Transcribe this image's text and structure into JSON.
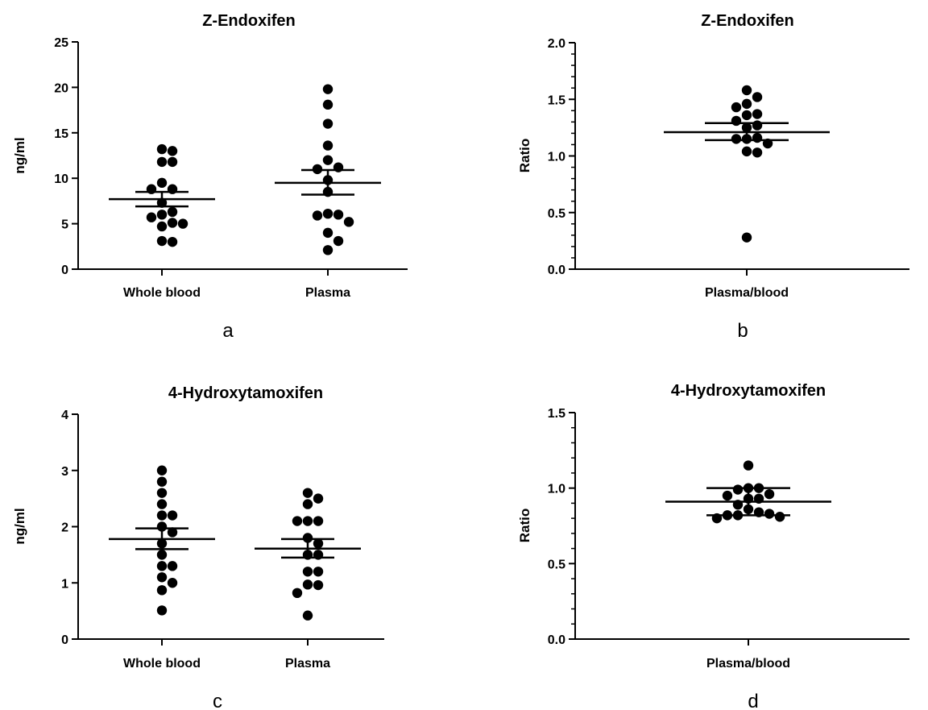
{
  "chart_data": [
    {
      "type": "scatter",
      "panel_label": "a",
      "title": "Z-Endoxifen",
      "ylabel": "ng/ml",
      "xlabel": "",
      "ylim": [
        0,
        25
      ],
      "yticks": [
        0,
        5,
        10,
        15,
        20,
        25
      ],
      "grid": false,
      "categories": [
        "Whole blood",
        "Plasma"
      ],
      "series": [
        {
          "category": "Whole blood",
          "values": [
            13.2,
            13.0,
            11.8,
            11.8,
            9.5,
            8.8,
            8.8,
            7.3,
            6.3,
            6.0,
            5.7,
            5.1,
            5.0,
            4.7,
            3.1,
            3.0
          ],
          "mean": 7.7,
          "sem_low": 6.9,
          "sem_high": 8.5
        },
        {
          "category": "Plasma",
          "values": [
            19.8,
            18.1,
            16.0,
            13.6,
            12.0,
            11.2,
            11.0,
            9.8,
            8.5,
            6.1,
            6.0,
            5.9,
            5.2,
            4.0,
            3.1,
            2.1
          ],
          "mean": 9.5,
          "sem_low": 8.2,
          "sem_high": 10.9
        }
      ]
    },
    {
      "type": "scatter",
      "panel_label": "b",
      "title": "Z-Endoxifen",
      "ylabel": "Ratio",
      "xlabel": "",
      "ylim": [
        0,
        2.0
      ],
      "yticks": [
        "0.0",
        "0.5",
        "1.0",
        "1.5",
        "2.0"
      ],
      "grid": false,
      "categories": [
        "Plasma/blood"
      ],
      "series": [
        {
          "category": "Plasma/blood",
          "values": [
            1.58,
            1.52,
            1.46,
            1.43,
            1.37,
            1.36,
            1.31,
            1.27,
            1.25,
            1.16,
            1.15,
            1.15,
            1.11,
            1.04,
            1.03,
            0.28
          ],
          "mean": 1.21,
          "sem_low": 1.14,
          "sem_high": 1.29
        }
      ]
    },
    {
      "type": "scatter",
      "panel_label": "c",
      "title": "4-Hydroxytamoxifen",
      "ylabel": "ng/ml",
      "xlabel": "",
      "ylim": [
        0,
        4
      ],
      "yticks": [
        0,
        1,
        2,
        3,
        4
      ],
      "grid": false,
      "categories": [
        "Whole blood",
        "Plasma"
      ],
      "series": [
        {
          "category": "Whole blood",
          "values": [
            3.0,
            2.8,
            2.6,
            2.4,
            2.2,
            2.2,
            2.0,
            1.9,
            1.7,
            1.5,
            1.3,
            1.3,
            1.1,
            1.0,
            0.87,
            0.51
          ],
          "mean": 1.78,
          "sem_low": 1.6,
          "sem_high": 1.97
        },
        {
          "category": "Plasma",
          "values": [
            2.6,
            2.5,
            2.4,
            2.1,
            2.1,
            2.1,
            1.8,
            1.7,
            1.5,
            1.5,
            1.2,
            1.2,
            0.97,
            0.96,
            0.82,
            0.42
          ],
          "mean": 1.61,
          "sem_low": 1.45,
          "sem_high": 1.78
        }
      ]
    },
    {
      "type": "scatter",
      "panel_label": "d",
      "title": "4-Hydroxytamoxifen",
      "ylabel": "Ratio",
      "xlabel": "",
      "ylim": [
        0,
        1.5
      ],
      "yticks": [
        "0.0",
        "0.5",
        "1.0",
        "1.5"
      ],
      "grid": false,
      "categories": [
        "Plasma/blood"
      ],
      "series": [
        {
          "category": "Plasma/blood",
          "values": [
            1.15,
            1.0,
            1.0,
            0.99,
            0.96,
            0.95,
            0.93,
            0.93,
            0.89,
            0.86,
            0.84,
            0.83,
            0.82,
            0.82,
            0.81,
            0.8
          ],
          "mean": 0.91,
          "sem_low": 0.82,
          "sem_high": 1.0
        }
      ]
    }
  ]
}
